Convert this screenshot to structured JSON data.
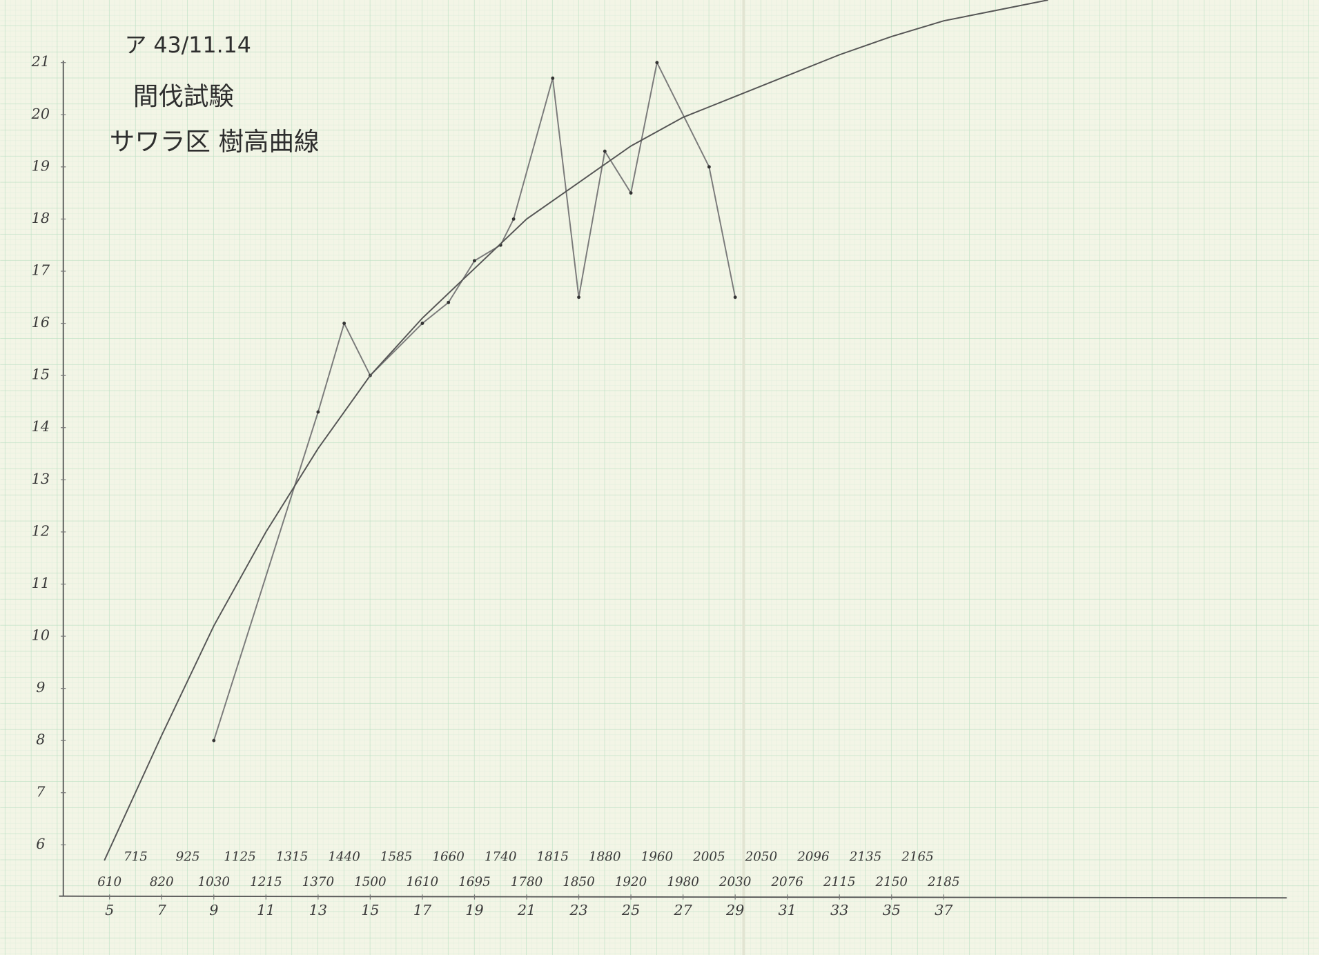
{
  "chart_data": {
    "type": "line",
    "title": "ア 43/11.14",
    "subtitle": "間伐試験",
    "annotations": [
      "サワラ区 樹高曲線"
    ],
    "xlim": [
      3,
      50
    ],
    "ylim": [
      5,
      22.2
    ],
    "xticks": [
      5,
      7,
      9,
      11,
      13,
      15,
      17,
      19,
      21,
      23,
      25,
      27,
      29,
      31,
      33,
      35,
      37
    ],
    "yticks": [
      6,
      7,
      8,
      9,
      10,
      11,
      12,
      13,
      14,
      15,
      16,
      17,
      18,
      19,
      20,
      21
    ],
    "x_row_labels_upper": [
      "715",
      "925",
      "1125",
      "1315",
      "1440",
      "1585",
      "1660",
      "1740",
      "1815",
      "1880",
      "1960",
      "2005",
      "2050",
      "2096",
      "2135",
      "2165"
    ],
    "x_row_labels_lower": [
      "610",
      "820",
      "1030",
      "1215",
      "1370",
      "1500",
      "1610",
      "1695",
      "1780",
      "1850",
      "1920",
      "1980",
      "2030",
      "2076",
      "2115",
      "2150",
      "2185"
    ],
    "series": [
      {
        "color": "#7a7a7a",
        "markers": true,
        "x": [
          9,
          13,
          14,
          15,
          17,
          18,
          19,
          20,
          20.5,
          22,
          23,
          24,
          25,
          26,
          28,
          29
        ],
        "values": [
          8.0,
          14.3,
          16.0,
          15.0,
          16.0,
          16.4,
          17.2,
          17.5,
          18.0,
          20.7,
          16.5,
          19.3,
          18.5,
          21.0,
          19.0,
          16.5
        ]
      },
      {
        "color": "#555555",
        "markers": false,
        "x": [
          4.8,
          7,
          9,
          11,
          13,
          15,
          17,
          19,
          21,
          23,
          25,
          27,
          29,
          31,
          33,
          35,
          37,
          39,
          41
        ],
        "values": [
          5.7,
          8.1,
          10.2,
          12.0,
          13.6,
          15.0,
          16.1,
          17.05,
          18.0,
          18.7,
          19.4,
          19.95,
          20.35,
          20.75,
          21.15,
          21.5,
          21.8,
          22.0,
          22.2
        ]
      }
    ]
  }
}
